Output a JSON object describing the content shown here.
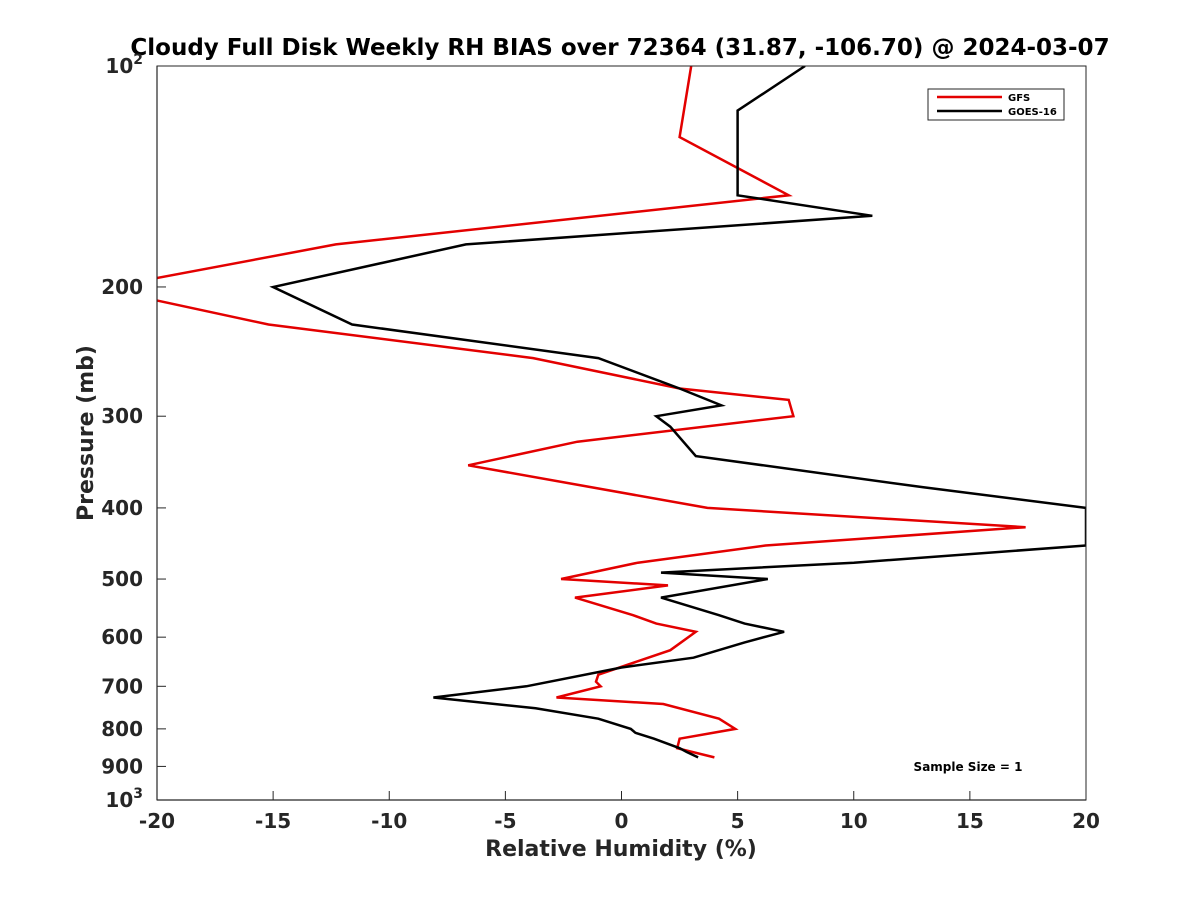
{
  "chart_data": {
    "type": "line",
    "title": "Cloudy Full Disk Weekly RH BIAS over 72364 (31.87, -106.70) @ 2024-03-07",
    "xlabel": "Relative Humidity (%)",
    "ylabel": "Pressure (mb)",
    "xlim": [
      -20,
      20
    ],
    "ylim": [
      100,
      1000
    ],
    "yscale": "log",
    "y_reversed": true,
    "grid": false,
    "legend_position": "top-right",
    "xticks": [
      {
        "value": -20,
        "label": "-20"
      },
      {
        "value": -15,
        "label": "-15"
      },
      {
        "value": -10,
        "label": "-10"
      },
      {
        "value": -5,
        "label": "-5"
      },
      {
        "value": 0,
        "label": "0"
      },
      {
        "value": 5,
        "label": "5"
      },
      {
        "value": 10,
        "label": "10"
      },
      {
        "value": 15,
        "label": "15"
      },
      {
        "value": 20,
        "label": "20"
      }
    ],
    "yticks": [
      {
        "value": 100,
        "label": "10",
        "exp": "2"
      },
      {
        "value": 200,
        "label": "200"
      },
      {
        "value": 300,
        "label": "300"
      },
      {
        "value": 400,
        "label": "400"
      },
      {
        "value": 500,
        "label": "500"
      },
      {
        "value": 600,
        "label": "600"
      },
      {
        "value": 700,
        "label": "700"
      },
      {
        "value": 800,
        "label": "800"
      },
      {
        "value": 900,
        "label": "900"
      },
      {
        "value": 1000,
        "label": "10",
        "exp": "3"
      }
    ],
    "series": [
      {
        "name": "GFS",
        "color": "#e30000",
        "points": [
          [
            3.0,
            100
          ],
          [
            2.5,
            125
          ],
          [
            7.2,
            150
          ],
          [
            -12.3,
            175
          ],
          [
            -20.2,
            195
          ],
          [
            -20.2,
            208
          ],
          [
            -15.2,
            225
          ],
          [
            -3.8,
            250
          ],
          [
            2.5,
            275
          ],
          [
            7.2,
            285
          ],
          [
            7.4,
            300
          ],
          [
            -1.9,
            325
          ],
          [
            -6.6,
            350
          ],
          [
            3.7,
            400
          ],
          [
            17.4,
            425
          ],
          [
            6.2,
            450
          ],
          [
            0.7,
            475
          ],
          [
            -2.6,
            500
          ],
          [
            2.0,
            510
          ],
          [
            -2.0,
            530
          ],
          [
            0.5,
            560
          ],
          [
            1.5,
            575
          ],
          [
            3.2,
            590
          ],
          [
            2.1,
            625
          ],
          [
            -1.0,
            675
          ],
          [
            -1.1,
            690
          ],
          [
            -0.9,
            700
          ],
          [
            -2.8,
            725
          ],
          [
            1.8,
            740
          ],
          [
            4.2,
            775
          ],
          [
            4.9,
            800
          ],
          [
            2.5,
            825
          ],
          [
            2.4,
            850
          ],
          [
            4.0,
            875
          ]
        ]
      },
      {
        "name": "GOES-16",
        "color": "#000000",
        "points": [
          [
            7.9,
            100
          ],
          [
            5.0,
            115
          ],
          [
            5.0,
            150
          ],
          [
            10.8,
            160
          ],
          [
            -6.7,
            175
          ],
          [
            -15.0,
            200
          ],
          [
            -11.6,
            225
          ],
          [
            -1.0,
            250
          ],
          [
            2.5,
            275
          ],
          [
            4.3,
            290
          ],
          [
            1.5,
            300
          ],
          [
            2.1,
            310
          ],
          [
            3.2,
            340
          ],
          [
            13.0,
            375
          ],
          [
            20.0,
            400
          ],
          [
            20.0,
            450
          ],
          [
            10.0,
            475
          ],
          [
            1.7,
            490
          ],
          [
            6.3,
            500
          ],
          [
            1.7,
            530
          ],
          [
            4.2,
            560
          ],
          [
            5.3,
            575
          ],
          [
            7.0,
            590
          ],
          [
            5.3,
            610
          ],
          [
            3.1,
            640
          ],
          [
            0.0,
            660
          ],
          [
            -4.1,
            700
          ],
          [
            -8.1,
            725
          ],
          [
            -3.7,
            750
          ],
          [
            -1.0,
            775
          ],
          [
            0.4,
            800
          ],
          [
            0.6,
            810
          ],
          [
            1.4,
            825
          ],
          [
            2.5,
            850
          ],
          [
            2.8,
            860
          ],
          [
            3.3,
            875
          ]
        ]
      }
    ],
    "annotation": "Sample Size = 1"
  }
}
